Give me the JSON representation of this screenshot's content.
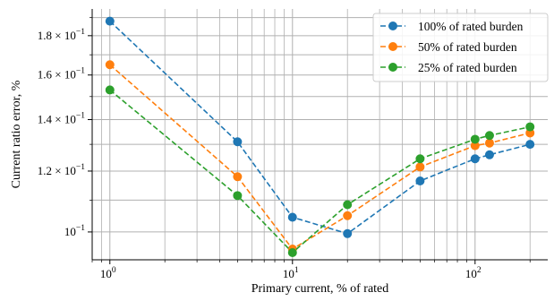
{
  "chart_data": {
    "type": "line",
    "xlabel": "Primary current, % of rated",
    "ylabel": "Current ratio error, %",
    "xscale": "log",
    "yscale": "log",
    "xlim": [
      0.8,
      250
    ],
    "ylim": [
      0.092,
      0.195
    ],
    "grid": "both (major and minor)",
    "legend_position": "top-right",
    "x_major_ticks": [
      {
        "value": 1,
        "base": "10",
        "exp": "0"
      },
      {
        "value": 10,
        "base": "10",
        "exp": "1"
      },
      {
        "value": 100,
        "base": "10",
        "exp": "2"
      }
    ],
    "y_ticks": [
      {
        "value": 0.18,
        "mant": "1.8 × 10",
        "exp": "−1"
      },
      {
        "value": 0.16,
        "mant": "1.6 × 10",
        "exp": "−1"
      },
      {
        "value": 0.14,
        "mant": "1.4 × 10",
        "exp": "−1"
      },
      {
        "value": 0.12,
        "mant": "1.2 × 10",
        "exp": "−1"
      },
      {
        "value": 0.1,
        "mant": "10",
        "exp": "−1"
      }
    ],
    "x": [
      1,
      5,
      10,
      20,
      50,
      100,
      120,
      200
    ],
    "series": [
      {
        "name": "100% of rated burden",
        "color": "#1f77b4",
        "values": [
          0.188,
          0.131,
          0.1045,
          0.0995,
          0.1165,
          0.1245,
          0.126,
          0.13
        ]
      },
      {
        "name": "50% of rated burden",
        "color": "#ff7f0e",
        "values": [
          0.165,
          0.118,
          0.095,
          0.105,
          0.1215,
          0.1295,
          0.1305,
          0.1345
        ]
      },
      {
        "name": "25% of rated burden",
        "color": "#2ca02c",
        "values": [
          0.153,
          0.1115,
          0.094,
          0.1085,
          0.1245,
          0.132,
          0.1335,
          0.137
        ]
      }
    ]
  }
}
